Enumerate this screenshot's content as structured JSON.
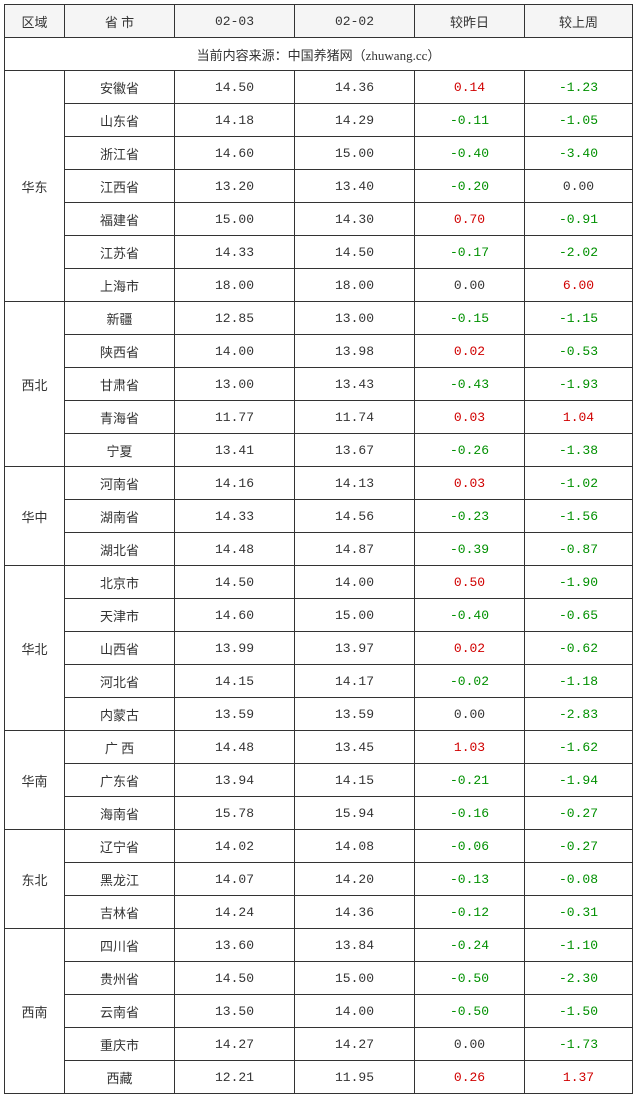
{
  "columns": [
    "区域",
    "省 市",
    "02-03",
    "02-02",
    "较昨日",
    "较上周"
  ],
  "source_text": "当前内容来源：中国养猪网（zhuwang.cc）",
  "regions": [
    {
      "name": "华东",
      "rows": [
        {
          "prov": "安徽省",
          "v1": "14.50",
          "v2": "14.36",
          "d1": "0.14",
          "c1": "pos",
          "d2": "-1.23",
          "c2": "neg"
        },
        {
          "prov": "山东省",
          "v1": "14.18",
          "v2": "14.29",
          "d1": "-0.11",
          "c1": "neg",
          "d2": "-1.05",
          "c2": "neg"
        },
        {
          "prov": "浙江省",
          "v1": "14.60",
          "v2": "15.00",
          "d1": "-0.40",
          "c1": "neg",
          "d2": "-3.40",
          "c2": "neg"
        },
        {
          "prov": "江西省",
          "v1": "13.20",
          "v2": "13.40",
          "d1": "-0.20",
          "c1": "neg",
          "d2": "0.00",
          "c2": "zero"
        },
        {
          "prov": "福建省",
          "v1": "15.00",
          "v2": "14.30",
          "d1": "0.70",
          "c1": "pos",
          "d2": "-0.91",
          "c2": "neg"
        },
        {
          "prov": "江苏省",
          "v1": "14.33",
          "v2": "14.50",
          "d1": "-0.17",
          "c1": "neg",
          "d2": "-2.02",
          "c2": "neg"
        },
        {
          "prov": "上海市",
          "v1": "18.00",
          "v2": "18.00",
          "d1": "0.00",
          "c1": "zero",
          "d2": "6.00",
          "c2": "pos"
        }
      ]
    },
    {
      "name": "西北",
      "rows": [
        {
          "prov": "新疆",
          "v1": "12.85",
          "v2": "13.00",
          "d1": "-0.15",
          "c1": "neg",
          "d2": "-1.15",
          "c2": "neg"
        },
        {
          "prov": "陕西省",
          "v1": "14.00",
          "v2": "13.98",
          "d1": "0.02",
          "c1": "pos",
          "d2": "-0.53",
          "c2": "neg"
        },
        {
          "prov": "甘肃省",
          "v1": "13.00",
          "v2": "13.43",
          "d1": "-0.43",
          "c1": "neg",
          "d2": "-1.93",
          "c2": "neg"
        },
        {
          "prov": "青海省",
          "v1": "11.77",
          "v2": "11.74",
          "d1": "0.03",
          "c1": "pos",
          "d2": "1.04",
          "c2": "pos"
        },
        {
          "prov": "宁夏",
          "v1": "13.41",
          "v2": "13.67",
          "d1": "-0.26",
          "c1": "neg",
          "d2": "-1.38",
          "c2": "neg"
        }
      ]
    },
    {
      "name": "华中",
      "rows": [
        {
          "prov": "河南省",
          "v1": "14.16",
          "v2": "14.13",
          "d1": "0.03",
          "c1": "pos",
          "d2": "-1.02",
          "c2": "neg"
        },
        {
          "prov": "湖南省",
          "v1": "14.33",
          "v2": "14.56",
          "d1": "-0.23",
          "c1": "neg",
          "d2": "-1.56",
          "c2": "neg"
        },
        {
          "prov": "湖北省",
          "v1": "14.48",
          "v2": "14.87",
          "d1": "-0.39",
          "c1": "neg",
          "d2": "-0.87",
          "c2": "neg"
        }
      ]
    },
    {
      "name": "华北",
      "rows": [
        {
          "prov": "北京市",
          "v1": "14.50",
          "v2": "14.00",
          "d1": "0.50",
          "c1": "pos",
          "d2": "-1.90",
          "c2": "neg"
        },
        {
          "prov": "天津市",
          "v1": "14.60",
          "v2": "15.00",
          "d1": "-0.40",
          "c1": "neg",
          "d2": "-0.65",
          "c2": "neg"
        },
        {
          "prov": "山西省",
          "v1": "13.99",
          "v2": "13.97",
          "d1": "0.02",
          "c1": "pos",
          "d2": "-0.62",
          "c2": "neg"
        },
        {
          "prov": "河北省",
          "v1": "14.15",
          "v2": "14.17",
          "d1": "-0.02",
          "c1": "neg",
          "d2": "-1.18",
          "c2": "neg"
        },
        {
          "prov": "内蒙古",
          "v1": "13.59",
          "v2": "13.59",
          "d1": "0.00",
          "c1": "zero",
          "d2": "-2.83",
          "c2": "neg"
        }
      ]
    },
    {
      "name": "华南",
      "rows": [
        {
          "prov": "广 西",
          "v1": "14.48",
          "v2": "13.45",
          "d1": "1.03",
          "c1": "pos",
          "d2": "-1.62",
          "c2": "neg"
        },
        {
          "prov": "广东省",
          "v1": "13.94",
          "v2": "14.15",
          "d1": "-0.21",
          "c1": "neg",
          "d2": "-1.94",
          "c2": "neg"
        },
        {
          "prov": "海南省",
          "v1": "15.78",
          "v2": "15.94",
          "d1": "-0.16",
          "c1": "neg",
          "d2": "-0.27",
          "c2": "neg"
        }
      ]
    },
    {
      "name": "东北",
      "rows": [
        {
          "prov": "辽宁省",
          "v1": "14.02",
          "v2": "14.08",
          "d1": "-0.06",
          "c1": "neg",
          "d2": "-0.27",
          "c2": "neg"
        },
        {
          "prov": "黑龙江",
          "v1": "14.07",
          "v2": "14.20",
          "d1": "-0.13",
          "c1": "neg",
          "d2": "-0.08",
          "c2": "neg"
        },
        {
          "prov": "吉林省",
          "v1": "14.24",
          "v2": "14.36",
          "d1": "-0.12",
          "c1": "neg",
          "d2": "-0.31",
          "c2": "neg"
        }
      ]
    },
    {
      "name": "西南",
      "rows": [
        {
          "prov": "四川省",
          "v1": "13.60",
          "v2": "13.84",
          "d1": "-0.24",
          "c1": "neg",
          "d2": "-1.10",
          "c2": "neg"
        },
        {
          "prov": "贵州省",
          "v1": "14.50",
          "v2": "15.00",
          "d1": "-0.50",
          "c1": "neg",
          "d2": "-2.30",
          "c2": "neg"
        },
        {
          "prov": "云南省",
          "v1": "13.50",
          "v2": "14.00",
          "d1": "-0.50",
          "c1": "neg",
          "d2": "-1.50",
          "c2": "neg"
        },
        {
          "prov": "重庆市",
          "v1": "14.27",
          "v2": "14.27",
          "d1": "0.00",
          "c1": "zero",
          "d2": "-1.73",
          "c2": "neg"
        },
        {
          "prov": "西藏",
          "v1": "12.21",
          "v2": "11.95",
          "d1": "0.26",
          "c1": "pos",
          "d2": "1.37",
          "c2": "pos"
        }
      ]
    }
  ]
}
